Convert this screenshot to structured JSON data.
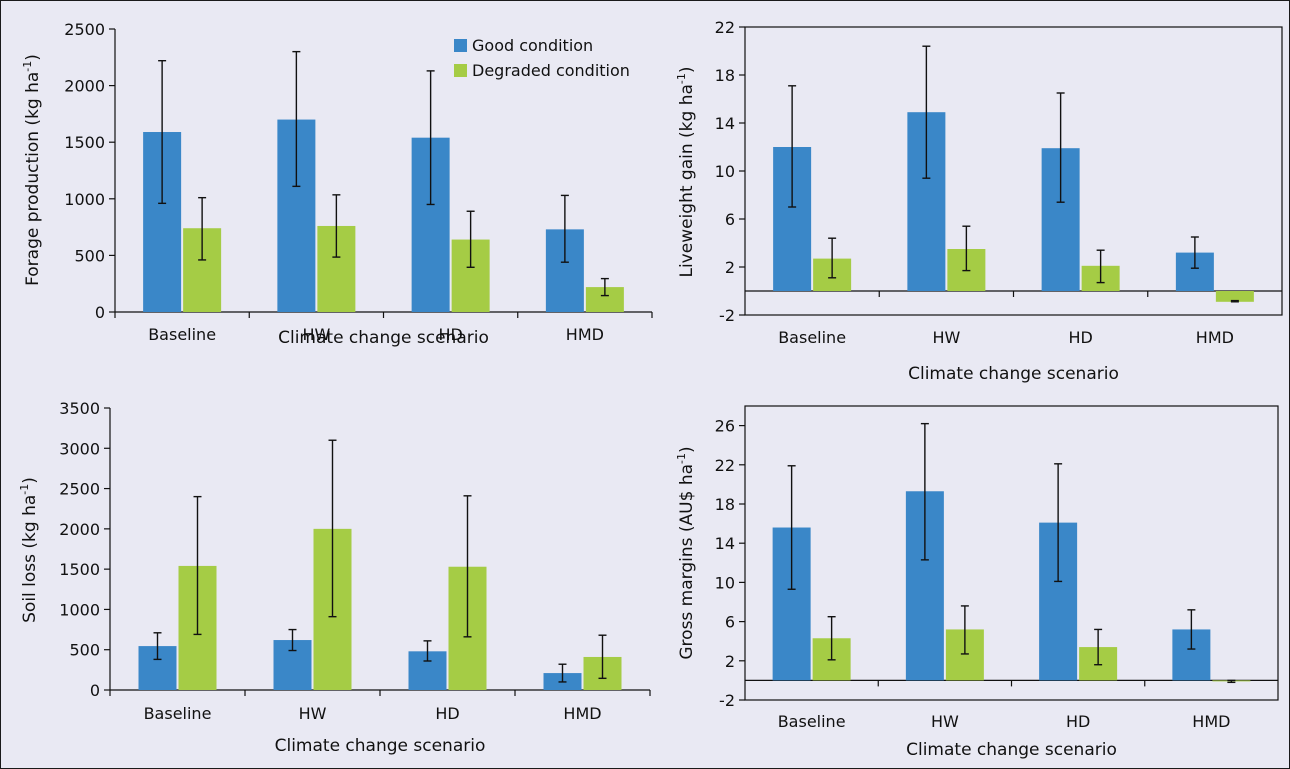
{
  "colors": {
    "good": "#3a87c8",
    "degraded": "#a5cc45",
    "axis": "#111111"
  },
  "legend": {
    "good_label": "Good condition",
    "degraded_label": "Degraded condition"
  },
  "chart_data": [
    {
      "type": "bar",
      "categories": [
        "Baseline",
        "HW",
        "HD",
        "HMD"
      ],
      "xlabel": "Climate change scenario",
      "ylabel": {
        "main": "Forage production (kg ha",
        "sup": "-1",
        "close": ")"
      },
      "ylim": [
        0,
        2500
      ],
      "yticks": [
        0,
        500,
        1000,
        1500,
        2000,
        2500
      ],
      "legend": "top-right",
      "series": [
        {
          "name": "Good condition",
          "values": [
            1590,
            1700,
            1540,
            730
          ],
          "err_low": [
            960,
            1110,
            950,
            440
          ],
          "err_high": [
            2220,
            2300,
            2130,
            1030
          ]
        },
        {
          "name": "Degraded condition",
          "values": [
            740,
            760,
            640,
            220
          ],
          "err_low": [
            460,
            485,
            395,
            145
          ],
          "err_high": [
            1010,
            1035,
            890,
            295
          ]
        }
      ]
    },
    {
      "type": "bar",
      "categories": [
        "Baseline",
        "HW",
        "HD",
        "HMD"
      ],
      "xlabel": "Climate change scenario",
      "ylabel": {
        "main": "Liveweight gain (kg ha",
        "sup": "-1",
        "close": ")"
      },
      "ylim": [
        -2,
        22
      ],
      "yticks": [
        -2,
        2,
        6,
        10,
        14,
        18,
        22
      ],
      "series": [
        {
          "values": [
            12.0,
            14.9,
            11.9,
            3.2
          ],
          "err_low": [
            7.0,
            9.4,
            7.4,
            1.9
          ],
          "err_high": [
            17.1,
            20.4,
            16.5,
            4.5
          ]
        },
        {
          "values": [
            2.7,
            3.5,
            2.1,
            -0.9
          ],
          "err_low": [
            1.1,
            1.7,
            0.7,
            -0.9
          ],
          "err_high": [
            4.4,
            5.4,
            3.4,
            -0.8
          ]
        }
      ]
    },
    {
      "type": "bar",
      "categories": [
        "Baseline",
        "HW",
        "HD",
        "HMD"
      ],
      "xlabel": "Climate change scenario",
      "ylabel": {
        "main": "Soil loss (kg ha",
        "sup": "-1",
        "close": ")"
      },
      "ylim": [
        0,
        3500
      ],
      "yticks": [
        0,
        500,
        1000,
        1500,
        2000,
        2500,
        3000,
        3500
      ],
      "series": [
        {
          "values": [
            545,
            620,
            480,
            210
          ],
          "err_low": [
            380,
            490,
            360,
            100
          ],
          "err_high": [
            710,
            750,
            610,
            320
          ]
        },
        {
          "values": [
            1540,
            2000,
            1530,
            410
          ],
          "err_low": [
            690,
            910,
            660,
            145
          ],
          "err_high": [
            2400,
            3100,
            2410,
            680
          ]
        }
      ]
    },
    {
      "type": "bar",
      "categories": [
        "Baseline",
        "HW",
        "HD",
        "HMD"
      ],
      "xlabel": "Climate change scenario",
      "ylabel": {
        "main": "Gross margins (AU$ ha",
        "sup": "-1",
        "close": ")"
      },
      "ylim": [
        -2,
        28
      ],
      "yticks": [
        -2,
        2,
        6,
        10,
        14,
        18,
        22,
        26
      ],
      "series": [
        {
          "values": [
            15.6,
            19.3,
            16.1,
            5.2
          ],
          "err_low": [
            9.3,
            12.3,
            10.1,
            3.2
          ],
          "err_high": [
            21.9,
            26.2,
            22.1,
            7.2
          ]
        },
        {
          "values": [
            4.3,
            5.2,
            3.4,
            -0.1
          ],
          "err_low": [
            2.1,
            2.7,
            1.6,
            -0.2
          ],
          "err_high": [
            6.5,
            7.6,
            5.2,
            0.0
          ]
        }
      ]
    }
  ]
}
